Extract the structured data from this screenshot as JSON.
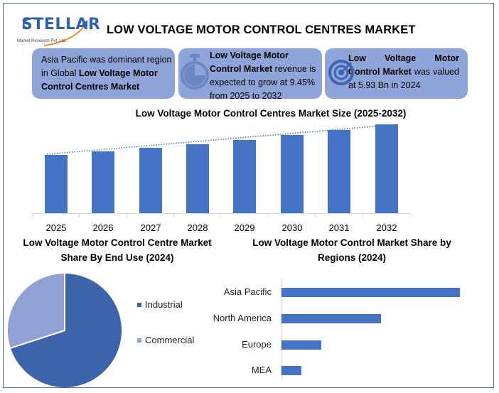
{
  "header": {
    "logo_text": "STELLAR",
    "logo_subtext": "Market Research Pvt. Ltd.",
    "title": "LOW VOLTAGE MOTOR CONTROL CENTRES MARKET"
  },
  "cards": [
    {
      "icon": "globe-region",
      "text_plain": "Asia Pacific was dominant region in Global ",
      "text_bold": "Low Voltage Motor Control Centres Market",
      "text_after": ""
    },
    {
      "icon": "stopwatch-icon",
      "text_bold": "Low Voltage Motor Control Market",
      "text_after": " revenue is expected to grow at 9.45% from 2025 to 2032"
    },
    {
      "icon": "target-icon",
      "text_bold": "Low Voltage Motor Control Market",
      "text_after": " was valued at 5.93 Bn in 2024"
    }
  ],
  "colors": {
    "bar": "#4472c4",
    "card_bg": "#8fa5da",
    "industrial": "#3d63ad",
    "commercial": "#8fa2d3",
    "frame": "#4a6894"
  },
  "chart_data": [
    {
      "type": "bar",
      "title": "Low Voltage Motor Control Centres Market Size (2025-2032)",
      "categories": [
        "2025",
        "2026",
        "2027",
        "2028",
        "2029",
        "2030",
        "2031",
        "2032"
      ],
      "values": [
        6.49,
        7.1,
        7.77,
        8.51,
        9.31,
        10.19,
        11.16,
        12.21
      ],
      "unit": "USD Bn (estimated from 5.93 Bn in 2024 at 9.45% CAGR)",
      "xlabel": "",
      "ylabel": "",
      "trendline": "dotted linear",
      "grid": false,
      "legend": "none"
    },
    {
      "type": "pie",
      "title": "Low Voltage Motor Control Centre Market Share By End Use (2024)",
      "categories": [
        "Industrial",
        "Commercial"
      ],
      "values": [
        70,
        30
      ],
      "legend_position": "right"
    },
    {
      "type": "bar",
      "orientation": "horizontal",
      "title": "Low Voltage Motor Control Market Share by Regions (2024)",
      "categories": [
        "Asia Pacific",
        "North America",
        "Europe",
        "MEA"
      ],
      "values": [
        251,
        140,
        56,
        28
      ],
      "value_note": "relative bar lengths in px (no axis values shown)",
      "grid": false
    }
  ]
}
